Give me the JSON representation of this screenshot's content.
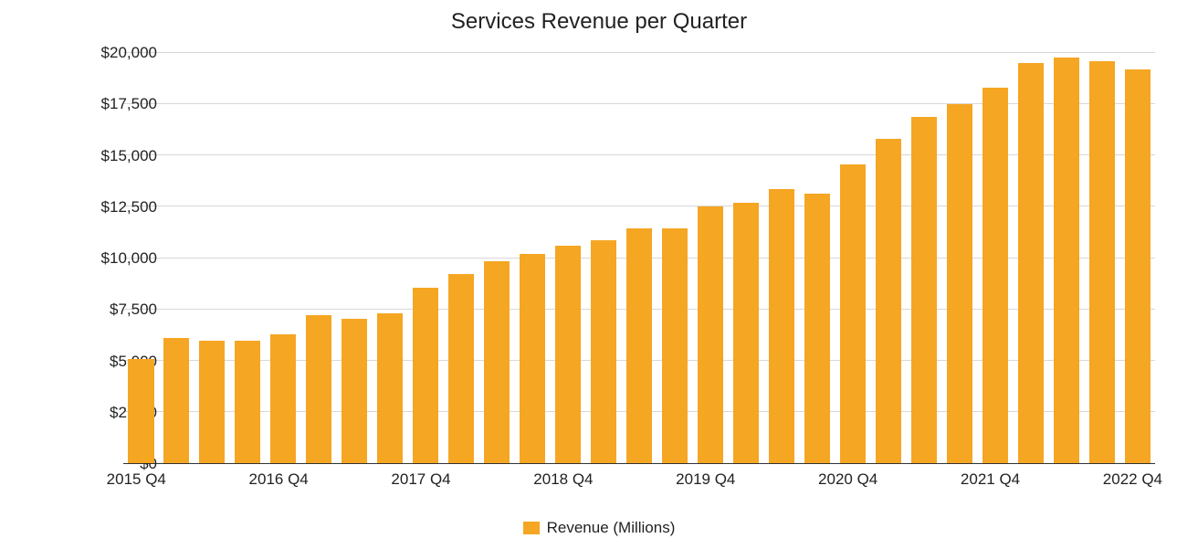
{
  "chart": {
    "type": "bar",
    "title": "Services Revenue per Quarter",
    "title_fontsize": 24,
    "title_color": "#222222",
    "background_color": "#ffffff",
    "bar_color": "#f5a623",
    "grid_color": "#d8d8d8",
    "axis_color": "#333333",
    "tick_font_color": "#222222",
    "tick_fontsize": 17,
    "bar_width_ratio": 0.72,
    "y": {
      "min": 0,
      "max": 20000,
      "tick_step": 2500,
      "prefix": "$",
      "thousands_sep": ",",
      "ticks": [
        "$0",
        "$2,500",
        "$5,000",
        "$7,500",
        "$10,000",
        "$12,500",
        "$15,000",
        "$17,500",
        "$20,000"
      ]
    },
    "x_labels_visible": [
      "2015 Q4",
      "2016 Q4",
      "2017 Q4",
      "2018 Q4",
      "2019 Q4",
      "2020 Q4",
      "2021 Q4",
      "2022 Q4"
    ],
    "series": [
      {
        "name": "Revenue (Millions)",
        "color": "#f5a623",
        "points": [
          {
            "label": "2015 Q4",
            "value": 5100,
            "show_x_label": true
          },
          {
            "label": "2016 Q1",
            "value": 6100,
            "show_x_label": false
          },
          {
            "label": "2016 Q2",
            "value": 5950,
            "show_x_label": false
          },
          {
            "label": "2016 Q3",
            "value": 5950,
            "show_x_label": false
          },
          {
            "label": "2016 Q4",
            "value": 6300,
            "show_x_label": true
          },
          {
            "label": "2017 Q1",
            "value": 7200,
            "show_x_label": false
          },
          {
            "label": "2017 Q2",
            "value": 7050,
            "show_x_label": false
          },
          {
            "label": "2017 Q3",
            "value": 7300,
            "show_x_label": false
          },
          {
            "label": "2017 Q4",
            "value": 8550,
            "show_x_label": true
          },
          {
            "label": "2018 Q1",
            "value": 9200,
            "show_x_label": false
          },
          {
            "label": "2018 Q2",
            "value": 9850,
            "show_x_label": false
          },
          {
            "label": "2018 Q3",
            "value": 10200,
            "show_x_label": false
          },
          {
            "label": "2018 Q4",
            "value": 10600,
            "show_x_label": true
          },
          {
            "label": "2019 Q1",
            "value": 10850,
            "show_x_label": false
          },
          {
            "label": "2019 Q2",
            "value": 11450,
            "show_x_label": false
          },
          {
            "label": "2019 Q3",
            "value": 11450,
            "show_x_label": false
          },
          {
            "label": "2019 Q4",
            "value": 12500,
            "show_x_label": true
          },
          {
            "label": "2020 Q1",
            "value": 12700,
            "show_x_label": false
          },
          {
            "label": "2020 Q2",
            "value": 13350,
            "show_x_label": false
          },
          {
            "label": "2020 Q3",
            "value": 13150,
            "show_x_label": false
          },
          {
            "label": "2020 Q4",
            "value": 14550,
            "show_x_label": true
          },
          {
            "label": "2021 Q1",
            "value": 15800,
            "show_x_label": false
          },
          {
            "label": "2021 Q2",
            "value": 16900,
            "show_x_label": false
          },
          {
            "label": "2021 Q3",
            "value": 17500,
            "show_x_label": false
          },
          {
            "label": "2021 Q4",
            "value": 18300,
            "show_x_label": true
          },
          {
            "label": "2022 Q1",
            "value": 19500,
            "show_x_label": false
          },
          {
            "label": "2022 Q2",
            "value": 19800,
            "show_x_label": false
          },
          {
            "label": "2022 Q3",
            "value": 19600,
            "show_x_label": false
          },
          {
            "label": "2022 Q4",
            "value": 19200,
            "show_x_label": true
          }
        ]
      }
    ],
    "legend": {
      "position": "bottom-center",
      "items": [
        {
          "label": "Revenue (Millions)",
          "color": "#f5a623"
        }
      ],
      "fontsize": 17
    }
  }
}
